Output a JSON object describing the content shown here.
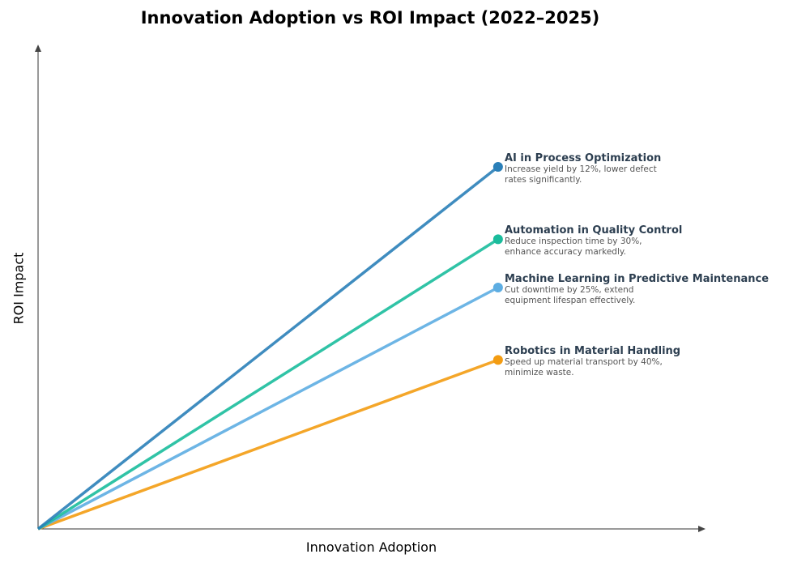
{
  "chart_data": {
    "type": "line",
    "title": "Innovation Adoption vs ROI Impact (2022–2025)",
    "xlabel": "Innovation Adoption",
    "ylabel": "ROI Impact",
    "xlim": [
      0,
      1
    ],
    "ylim": [
      0,
      1
    ],
    "grid": false,
    "ticks": false,
    "series": [
      {
        "name": "AI in Process Optimization",
        "description": "Increase yield by 12%, lower defect rates significantly.",
        "color": "#2a7fb8",
        "x": [
          0,
          0.69
        ],
        "y": [
          0,
          0.75
        ]
      },
      {
        "name": "Automation in Quality Control",
        "description": "Reduce inspection time by 30%, enhance accuracy markedly.",
        "color": "#1abc9c",
        "x": [
          0,
          0.69
        ],
        "y": [
          0,
          0.6
        ]
      },
      {
        "name": "Machine Learning in Predictive Maintenance",
        "description": "Cut downtime by 25%, extend equipment lifespan effectively.",
        "color": "#5dade2",
        "x": [
          0,
          0.69
        ],
        "y": [
          0,
          0.5
        ]
      },
      {
        "name": "Robotics in Material Handling",
        "description": "Speed up material transport by 40%, minimize waste.",
        "color": "#f39c12",
        "x": [
          0,
          0.69
        ],
        "y": [
          0,
          0.35
        ]
      }
    ]
  }
}
